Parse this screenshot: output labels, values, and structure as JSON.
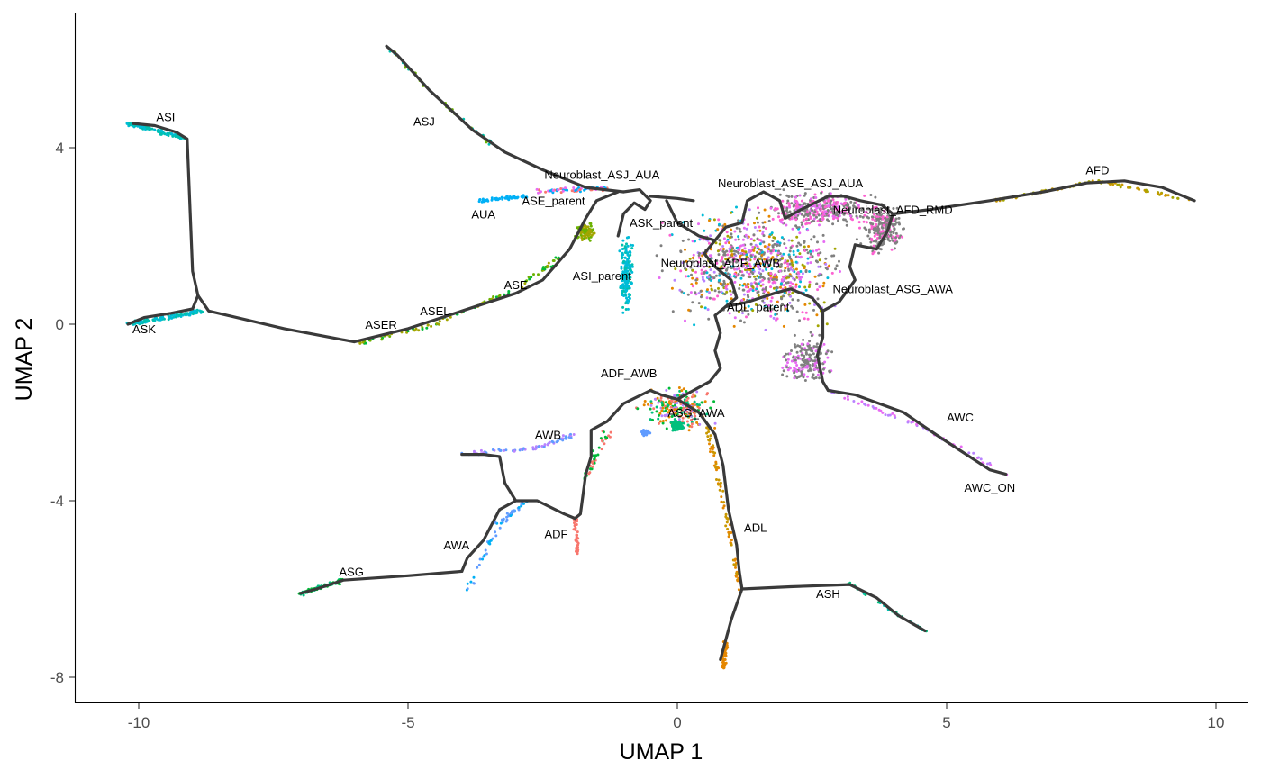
{
  "chart_data": {
    "type": "scatter",
    "title": "",
    "xlabel": "UMAP 1",
    "ylabel": "UMAP 2",
    "xlim": [
      -11.2,
      10.6
    ],
    "ylim": [
      -8.6,
      7.2
    ],
    "xticks": [
      -10,
      -5,
      0,
      5,
      10
    ],
    "yticks": [
      4,
      0,
      -4,
      -8
    ],
    "xtick_labels": [
      "-10",
      "-5",
      "0",
      "5",
      "10"
    ],
    "ytick_labels": [
      "4",
      "0",
      "-4",
      "-8"
    ],
    "grid": false,
    "legend": "none",
    "trajectory_color": "#3a3a3a",
    "labels": [
      {
        "text": "ASI",
        "x": -9.5,
        "y": 4.6
      },
      {
        "text": "ASJ",
        "x": -4.7,
        "y": 4.5
      },
      {
        "text": "ASK",
        "x": -9.9,
        "y": -0.2
      },
      {
        "text": "ASER",
        "x": -5.5,
        "y": -0.1
      },
      {
        "text": "ASEL",
        "x": -4.5,
        "y": 0.2
      },
      {
        "text": "ASE",
        "x": -3.0,
        "y": 0.8
      },
      {
        "text": "AUA",
        "x": -3.6,
        "y": 2.4
      },
      {
        "text": "ASE_parent",
        "x": -2.3,
        "y": 2.7
      },
      {
        "text": "Neuroblast_ASJ_AUA",
        "x": -1.4,
        "y": 3.3
      },
      {
        "text": "ASK_parent",
        "x": -0.3,
        "y": 2.2
      },
      {
        "text": "ASI_parent",
        "x": -1.4,
        "y": 1.0
      },
      {
        "text": "Neuroblast_ASE_ASJ_AUA",
        "x": 2.1,
        "y": 3.1
      },
      {
        "text": "Neuroblast_AFD_RMD",
        "x": 4.0,
        "y": 2.5
      },
      {
        "text": "AFD",
        "x": 7.8,
        "y": 3.4
      },
      {
        "text": "Neuroblast_ADF_AWB",
        "x": 0.8,
        "y": 1.3
      },
      {
        "text": "Neuroblast_ASG_AWA",
        "x": 4.0,
        "y": 0.7
      },
      {
        "text": "ADL_parent",
        "x": 1.5,
        "y": 0.3
      },
      {
        "text": "ADF_AWB",
        "x": -0.9,
        "y": -1.2
      },
      {
        "text": "ASG_AWA",
        "x": 0.35,
        "y": -2.1
      },
      {
        "text": "AWB",
        "x": -2.4,
        "y": -2.6
      },
      {
        "text": "AWC",
        "x": 5.25,
        "y": -2.2
      },
      {
        "text": "AWC_ON",
        "x": 5.8,
        "y": -3.8
      },
      {
        "text": "ADF",
        "x": -2.25,
        "y": -4.85
      },
      {
        "text": "ADL",
        "x": 1.45,
        "y": -4.7
      },
      {
        "text": "AWA",
        "x": -4.1,
        "y": -5.1
      },
      {
        "text": "ASG",
        "x": -6.05,
        "y": -5.7
      },
      {
        "text": "ASH",
        "x": 2.8,
        "y": -6.2
      }
    ],
    "point_colors": [
      "#F8766D",
      "#E58700",
      "#C99800",
      "#A3A500",
      "#6BB100",
      "#00BA38",
      "#00BF7D",
      "#00C0AF",
      "#00BCD8",
      "#00B0F6",
      "#619CFF",
      "#B983FF",
      "#E76BF3",
      "#FD61D1",
      "#808080"
    ]
  }
}
